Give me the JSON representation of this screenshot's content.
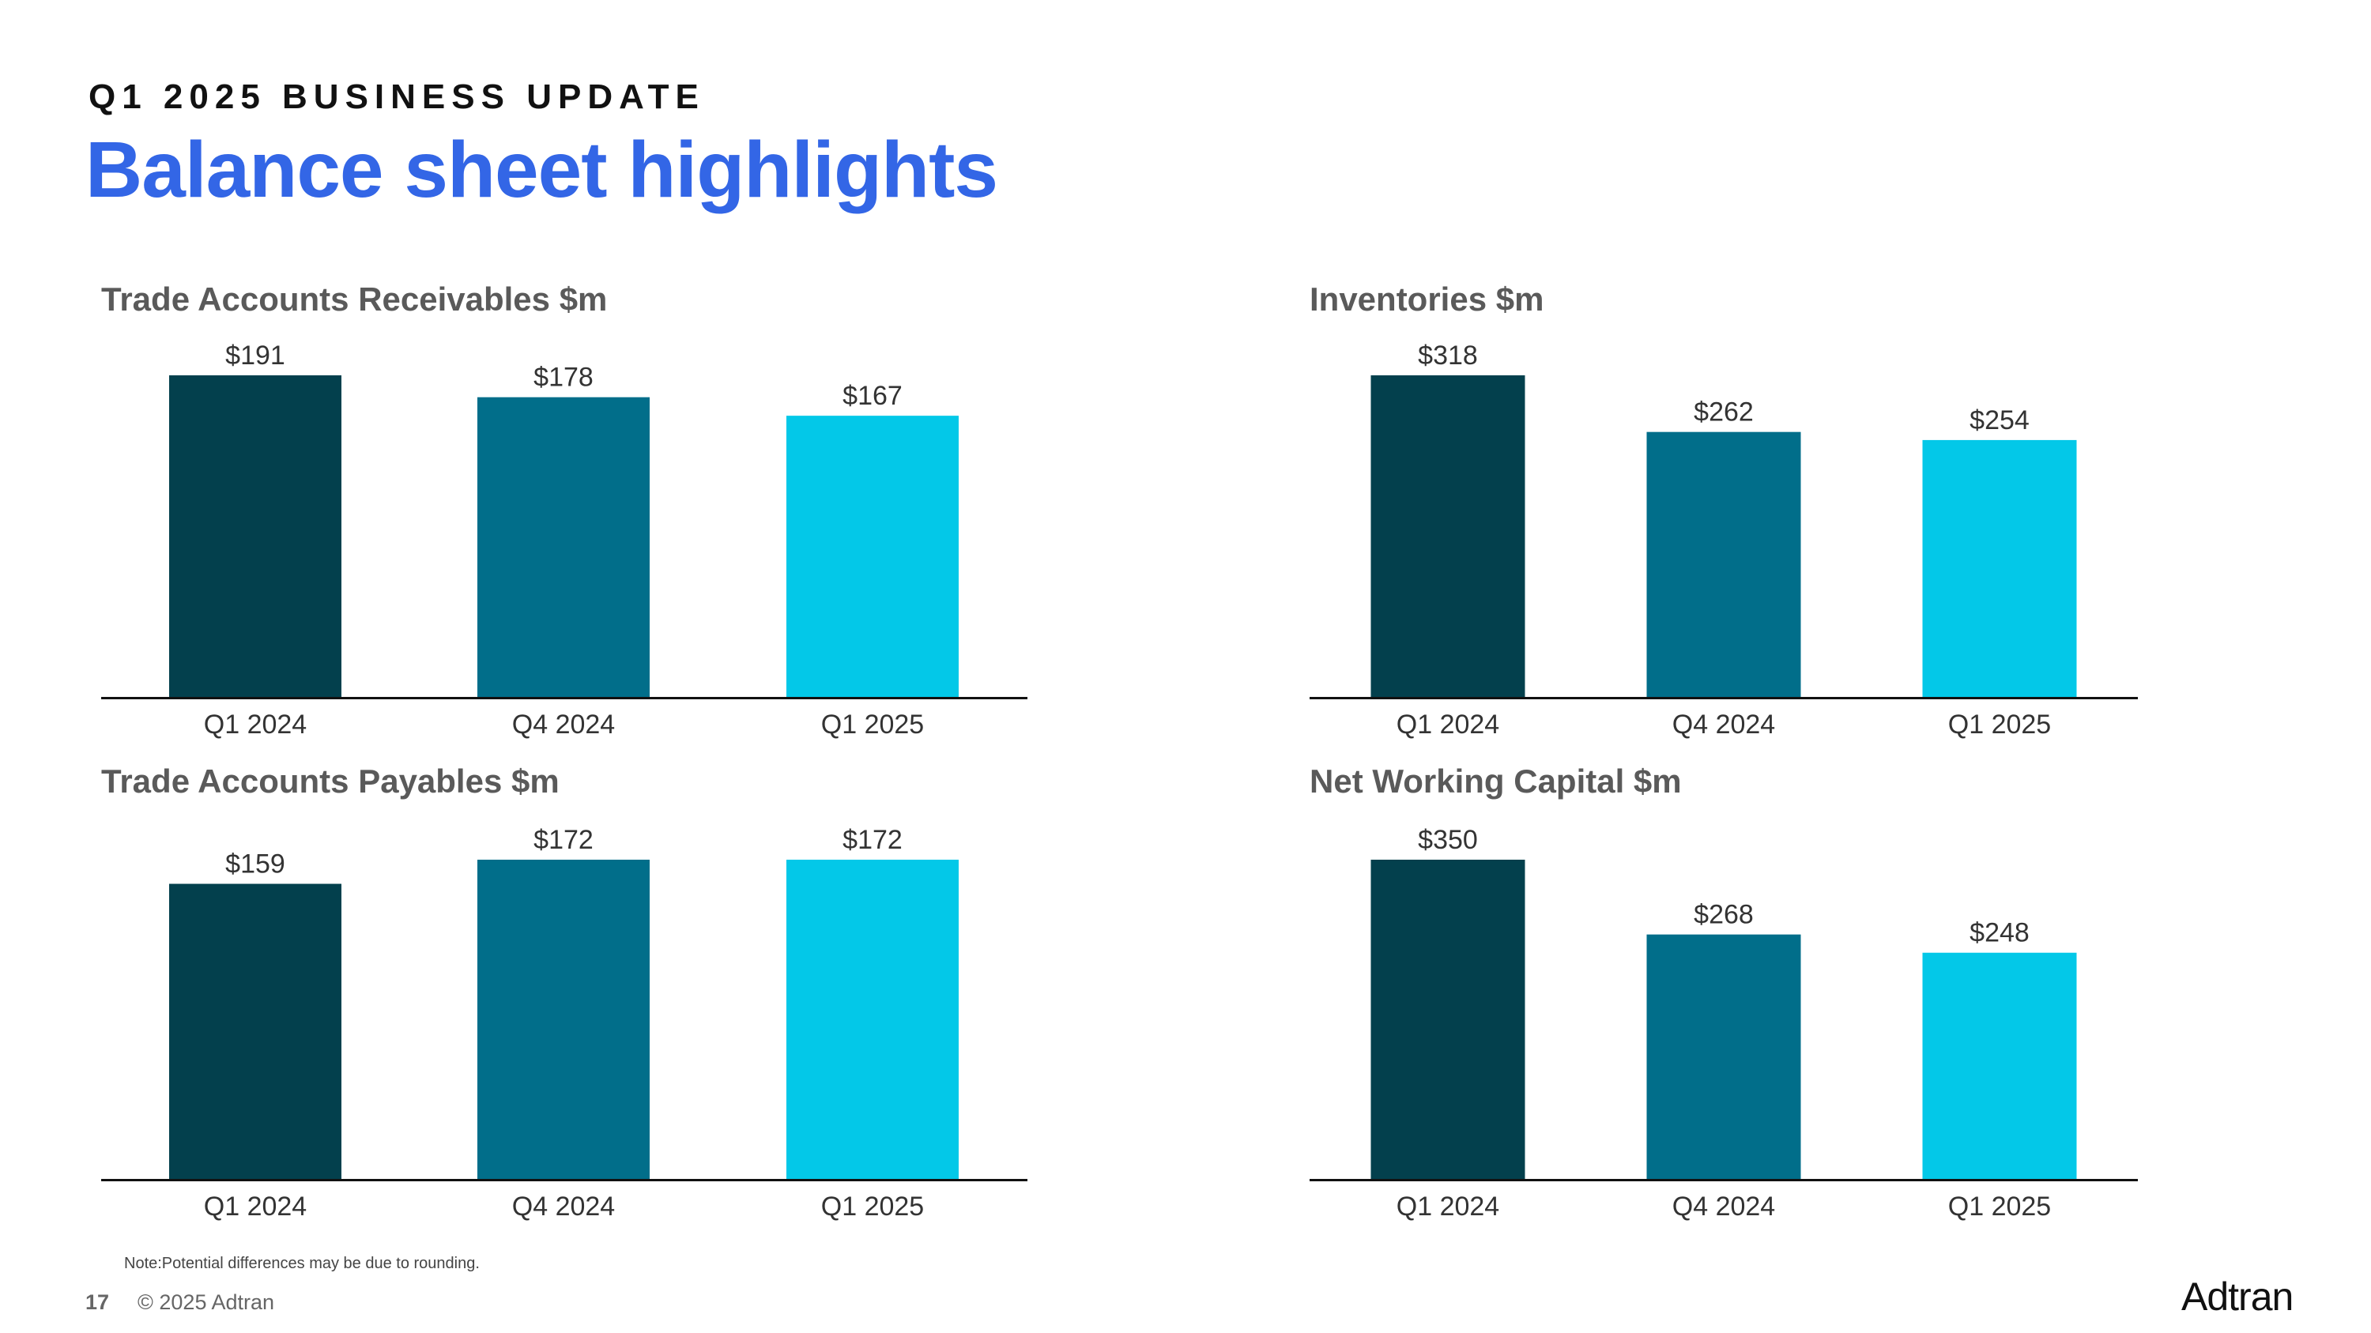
{
  "header": {
    "eyebrow": "Q1 2025 BUSINESS UPDATE",
    "title": "Balance sheet highlights"
  },
  "colors": {
    "bar_1": "#03404d",
    "bar_2": "#016e8a",
    "bar_3": "#03c8e8",
    "axis": "#111111",
    "label": "#333333"
  },
  "chart_data": [
    {
      "type": "bar",
      "title": "Trade Accounts Receivables $m",
      "categories": [
        "Q1 2024",
        "Q4 2024",
        "Q1 2025"
      ],
      "values": [
        191,
        178,
        167
      ],
      "labels": [
        "$191",
        "$178",
        "$167"
      ],
      "xlabel": "",
      "ylabel": "",
      "ylim": [
        0,
        191
      ]
    },
    {
      "type": "bar",
      "title": "Inventories $m",
      "categories": [
        "Q1 2024",
        "Q4 2024",
        "Q1 2025"
      ],
      "values": [
        318,
        262,
        254
      ],
      "labels": [
        "$318",
        "$262",
        "$254"
      ],
      "xlabel": "",
      "ylabel": "",
      "ylim": [
        0,
        318
      ]
    },
    {
      "type": "bar",
      "title": "Trade Accounts Payables $m",
      "categories": [
        "Q1 2024",
        "Q4 2024",
        "Q1 2025"
      ],
      "values": [
        159,
        172,
        172
      ],
      "labels": [
        "$159",
        "$172",
        "$172"
      ],
      "xlabel": "",
      "ylabel": "",
      "ylim": [
        0,
        172
      ]
    },
    {
      "type": "bar",
      "title": "Net Working Capital $m",
      "categories": [
        "Q1 2024",
        "Q4 2024",
        "Q1 2025"
      ],
      "values": [
        350,
        268,
        248
      ],
      "labels": [
        "$350",
        "$268",
        "$248"
      ],
      "xlabel": "",
      "ylabel": "",
      "ylim": [
        0,
        350
      ]
    }
  ],
  "footer": {
    "note": "Note:Potential differences may be due to rounding.",
    "page_number": "17",
    "copyright": "© 2025 Adtran",
    "logo_text": "Adtran"
  }
}
